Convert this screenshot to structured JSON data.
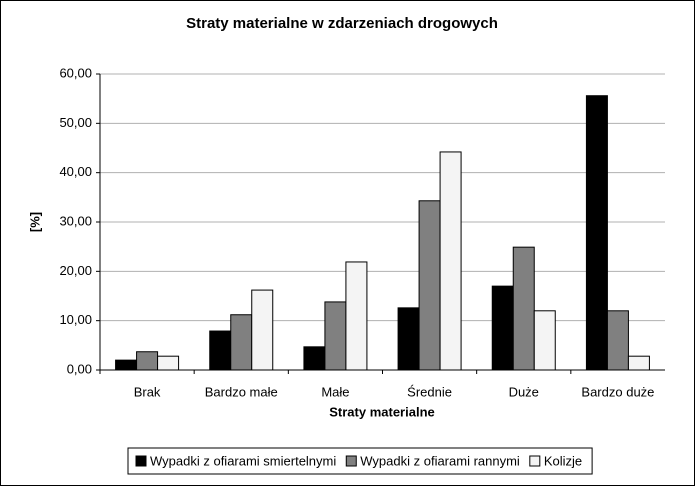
{
  "chart_data": {
    "type": "bar",
    "title": "Straty materialne w zdarzeniach drogowych",
    "x_label": "Straty materialne",
    "y_label": "[%]",
    "categories": [
      "Brak",
      "Bardzo małe",
      "Małe",
      "Średnie",
      "Duże",
      "Bardzo duże"
    ],
    "series": [
      {
        "name": "Wypadki z ofiarami smiertelnymi",
        "color": "#000000",
        "values": [
          2.0,
          7.9,
          4.7,
          12.6,
          17.0,
          55.6
        ]
      },
      {
        "name": "Wypadki z ofiarami rannymi",
        "color": "#808080",
        "values": [
          3.7,
          11.2,
          13.8,
          34.3,
          24.9,
          12.0
        ]
      },
      {
        "name": "Kolizje",
        "color": "#f4f4f4",
        "values": [
          2.8,
          16.2,
          21.9,
          44.2,
          12.0,
          2.8
        ]
      }
    ],
    "ylim": [
      0,
      60
    ],
    "yticks": [
      {
        "value": 0,
        "label": "0,00"
      },
      {
        "value": 10,
        "label": "10,00"
      },
      {
        "value": 20,
        "label": "20,00"
      },
      {
        "value": 30,
        "label": "30,00"
      },
      {
        "value": 40,
        "label": "40,00"
      },
      {
        "value": 50,
        "label": "50,00"
      },
      {
        "value": 60,
        "label": "60,00"
      }
    ],
    "grid": true,
    "legend": "bottom"
  }
}
